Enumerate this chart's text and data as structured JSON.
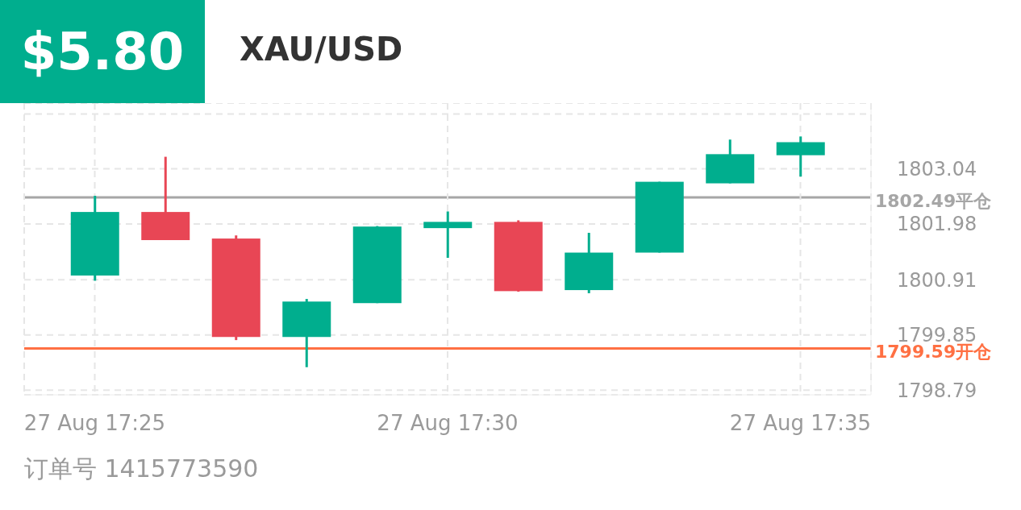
{
  "chart_data": {
    "type": "candlestick",
    "title": "XAU/USD",
    "subtitle": "$5.80",
    "x": [
      "--08-27T17:25",
      "--08-27T17:26",
      "--08-27T17:27",
      "--08-27T17:28",
      "--08-27T17:29",
      "--08-27T17:30",
      "--08-27T17:31",
      "--08-27T17:32",
      "--08-27T17:33",
      "--08-27T17:34",
      "--08-27T17:35"
    ],
    "ohlc": [
      [
        1800.99,
        1802.52,
        1800.89,
        1802.21
      ],
      [
        1802.21,
        1803.27,
        1801.67,
        1801.67
      ],
      [
        1801.7,
        1801.76,
        1799.75,
        1799.81
      ],
      [
        1799.81,
        1800.54,
        1799.23,
        1800.49
      ],
      [
        1800.46,
        1801.94,
        1800.46,
        1801.93
      ],
      [
        1801.9,
        1802.22,
        1801.33,
        1802.02
      ],
      [
        1802.02,
        1802.05,
        1800.68,
        1800.69
      ],
      [
        1800.71,
        1801.81,
        1800.65,
        1801.43
      ],
      [
        1801.43,
        1802.79,
        1801.43,
        1802.79
      ],
      [
        1802.76,
        1803.6,
        1802.76,
        1803.32
      ],
      [
        1803.3,
        1803.66,
        1802.89,
        1803.55
      ]
    ],
    "colors": [
      "#00ae8e",
      "#e84655",
      "#e84655",
      "#00ae8e",
      "#00ae8e",
      "#00ae8e",
      "#e84655",
      "#00ae8e",
      "#00ae8e",
      "#00ae8e",
      "#00ae8e"
    ],
    "xlim": [
      "--08-27T17:24",
      "--08-27T17:36"
    ],
    "xticks": [
      {
        "value": "--08-27T17:25",
        "label": "27 Aug  17:25"
      },
      {
        "value": "--08-27T17:30",
        "label": "27 Aug  17:30"
      },
      {
        "value": "--08-27T17:35",
        "label": "27 Aug  17:35"
      }
    ],
    "ylim": [
      1798.7,
      1804.3
    ],
    "yticks": [
      1798.79,
      1799.85,
      1800.91,
      1801.98,
      1803.04,
      {
        "value": 1804.09,
        "label": null
      }
    ],
    "grid": true,
    "ref_lines": [
      {
        "axis": "y",
        "value": 1802.49,
        "label": "1802.49平仓",
        "color": "#a6a6a6"
      },
      {
        "axis": "y",
        "value": 1799.59,
        "label": "1799.59开仓",
        "color": "#ff7043"
      }
    ],
    "annotations": [
      "订单号 1415773590"
    ]
  }
}
